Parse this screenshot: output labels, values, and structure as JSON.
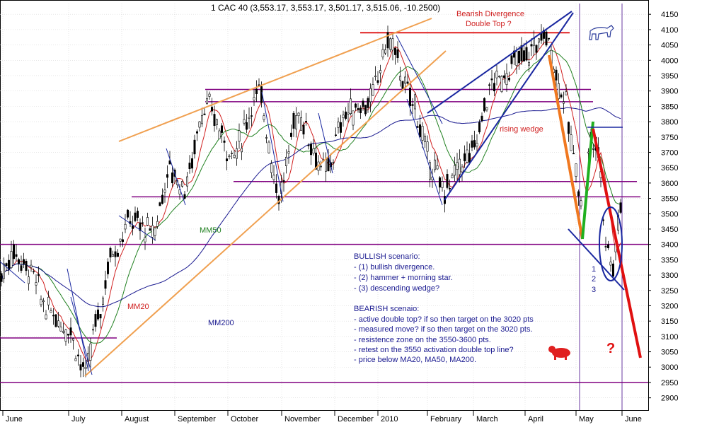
{
  "header": "1 CAC 40 (3,553.17, 3,553.17, 3,501.17, 3,515.06, -10.2500)",
  "chart_data": {
    "type": "candlestick",
    "instrument": "CAC 40",
    "ylim": [
      2860,
      4185
    ],
    "y_ticks": [
      2900,
      2950,
      3000,
      3050,
      3100,
      3150,
      3200,
      3250,
      3300,
      3350,
      3400,
      3450,
      3500,
      3550,
      3600,
      3650,
      3700,
      3750,
      3800,
      3850,
      3900,
      3950,
      4000,
      4050,
      4100,
      4150
    ],
    "month_labels": [
      "June",
      "July",
      "August",
      "September",
      "October",
      "November",
      "December",
      "2010",
      "February",
      "March",
      "April",
      "May",
      "June"
    ],
    "grid": true,
    "horizontal_levels": [
      {
        "value": 4090,
        "color": "#e02020"
      },
      {
        "value": 3905,
        "color": "#800080"
      },
      {
        "value": 3865,
        "color": "#800080"
      },
      {
        "value": 3605,
        "color": "#800080"
      },
      {
        "value": 3555,
        "color": "#800080"
      },
      {
        "value": 3400,
        "color": "#800080"
      },
      {
        "value": 3095,
        "color": "#800080"
      },
      {
        "value": 2950,
        "color": "#800080"
      }
    ],
    "moving_averages": [
      {
        "name": "MM20",
        "color": "#d02020"
      },
      {
        "name": "MM50",
        "color": "#208020"
      },
      {
        "name": "MM200",
        "color": "#1a1a90"
      }
    ],
    "annotations": {
      "bearish_title": [
        "Bearish Divergence",
        "Double Top ?"
      ],
      "rising_wedge": "rising wedge",
      "numbers": [
        "1",
        "2",
        "3"
      ],
      "question_mark": "?",
      "bullish_title": "BULLISH scenario:",
      "bullish_items": [
        "- (1) bullish divergence.",
        "- (2) hammer + morning star.",
        "- (3) descending wedge?"
      ],
      "bearish_scenario_title": "BEARISH scenaio:",
      "bearish_items": [
        "- active double top? if so then target on the 3020 pts",
        "- measured move? if so then target on the 3020 pts.",
        "- resistence zone on the 3550-3600 pts.",
        "- retest on the 3550 activation double top line?",
        "- price below MA20, MA50, MA200."
      ]
    }
  }
}
